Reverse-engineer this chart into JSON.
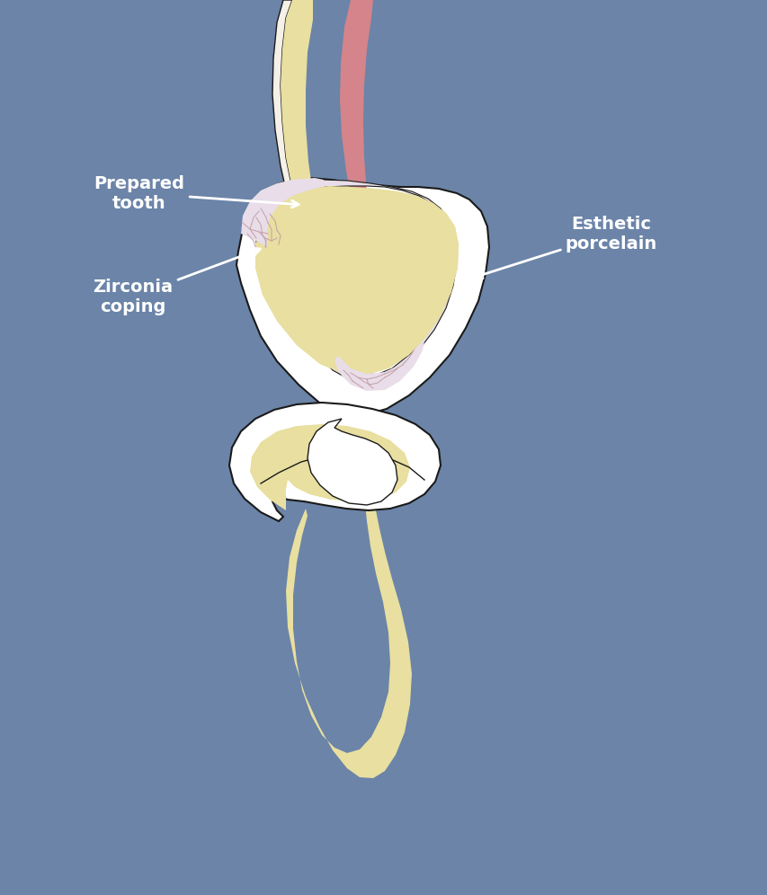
{
  "bg_color": "#6b84a8",
  "tooth_color_outer": "#f5f0e8",
  "tooth_color_inner": "#f0ead8",
  "dentin_color": "#e8dfa0",
  "pulp_color": "#d4848a",
  "zirconia_color": "#e8dde8",
  "zirconia_network_color": "#c4a0a8",
  "outline_color": "#1a1a1a",
  "white_color": "#ffffff",
  "label_prepared_tooth": "Prepared\ntooth",
  "label_zirconia": "Zirconia\ncoping",
  "label_esthetic": "Esthetic\nporcelain",
  "label_fontsize": 14,
  "arrow_color": "#ffffff",
  "figsize": [
    8.54,
    9.96
  ],
  "dpi": 100
}
